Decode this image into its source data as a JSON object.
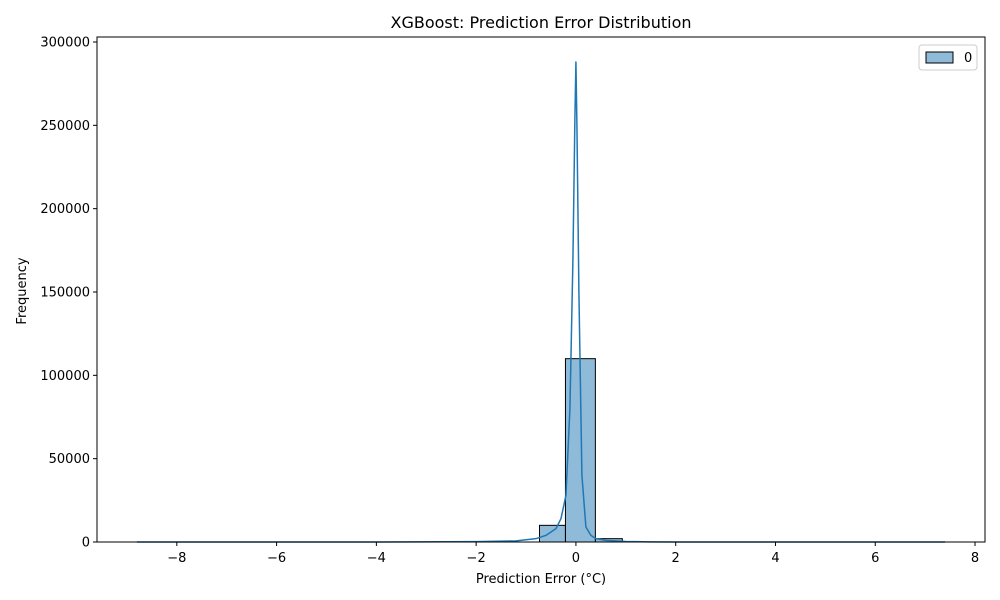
{
  "chart_data": {
    "type": "bar",
    "title": "XGBoost: Prediction Error Distribution",
    "xlabel": "Prediction Error (°C)",
    "ylabel": "Frequency",
    "xlim": [
      -9.6,
      8.2
    ],
    "ylim": [
      0,
      303000
    ],
    "xticks": [
      -8,
      -6,
      -4,
      -2,
      0,
      2,
      4,
      6,
      8
    ],
    "xtick_labels": [
      "−8",
      "−6",
      "−4",
      "−2",
      "0",
      "2",
      "4",
      "6",
      "8"
    ],
    "yticks": [
      0,
      50000,
      100000,
      150000,
      200000,
      250000,
      300000
    ],
    "ytick_labels": [
      "0",
      "50000",
      "100000",
      "150000",
      "200000",
      "250000",
      "300000"
    ],
    "grid": false,
    "legend": {
      "position": "top-right",
      "entries": [
        "0"
      ]
    },
    "histogram": {
      "bins": [
        {
          "x0": -0.73,
          "x1": -0.21,
          "count": 10000
        },
        {
          "x0": -0.21,
          "x1": 0.39,
          "count": 110000
        },
        {
          "x0": 0.39,
          "x1": 0.93,
          "count": 2000
        }
      ]
    },
    "kde": {
      "x": [
        -8.8,
        -6,
        -4,
        -2,
        -1.2,
        -0.8,
        -0.6,
        -0.4,
        -0.3,
        -0.2,
        -0.12,
        -0.06,
        -0.02,
        0,
        0.02,
        0.06,
        0.12,
        0.2,
        0.3,
        0.4,
        0.6,
        1.0,
        1.5,
        2,
        4,
        6,
        7.4
      ],
      "y": [
        0,
        0,
        0,
        200,
        700,
        2000,
        4000,
        8000,
        14000,
        28000,
        80000,
        170000,
        255000,
        288000,
        250000,
        150000,
        40000,
        9000,
        4000,
        2000,
        1000,
        300,
        100,
        0,
        0,
        0,
        0
      ]
    },
    "colors": {
      "bar_fill": "#1f77b4",
      "bar_fill_opacity": 0.5,
      "line": "#1f77b4"
    }
  }
}
